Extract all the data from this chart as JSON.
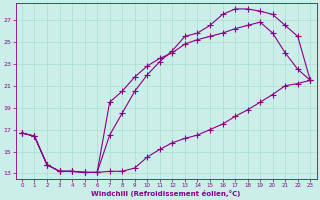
{
  "xlabel": "Windchill (Refroidissement éolien,°C)",
  "bg_color": "#cceee8",
  "grid_color": "#aaddcc",
  "line_color": "#880088",
  "xlim": [
    -0.5,
    23.5
  ],
  "ylim": [
    12.5,
    28.5
  ],
  "yticks": [
    13,
    15,
    17,
    19,
    21,
    23,
    25,
    27
  ],
  "xticks": [
    0,
    1,
    2,
    3,
    4,
    5,
    6,
    7,
    8,
    9,
    10,
    11,
    12,
    13,
    14,
    15,
    16,
    17,
    18,
    19,
    20,
    21,
    22,
    23
  ],
  "line1_x": [
    0,
    1,
    2,
    3,
    4,
    5,
    6,
    7,
    8,
    9,
    10,
    11,
    12,
    13,
    14,
    15,
    16,
    17,
    18,
    19,
    20,
    21,
    22,
    23
  ],
  "line1_y": [
    16.7,
    16.4,
    13.8,
    13.2,
    13.2,
    13.1,
    13.1,
    13.2,
    13.2,
    13.5,
    14.5,
    15.2,
    15.8,
    16.2,
    16.5,
    17.0,
    17.5,
    18.2,
    18.8,
    19.5,
    20.2,
    21.0,
    21.2,
    21.5
  ],
  "line2_x": [
    0,
    1,
    2,
    3,
    4,
    5,
    6,
    7,
    8,
    9,
    10,
    11,
    12,
    13,
    14,
    15,
    16,
    17,
    18,
    19,
    20,
    21,
    22,
    23
  ],
  "line2_y": [
    16.7,
    16.4,
    13.8,
    13.2,
    13.2,
    13.1,
    13.1,
    19.5,
    20.5,
    21.8,
    22.8,
    23.5,
    24.0,
    24.8,
    25.2,
    25.5,
    25.8,
    26.2,
    26.5,
    26.8,
    25.8,
    24.0,
    22.5,
    21.5
  ],
  "line3_x": [
    0,
    1,
    2,
    3,
    4,
    5,
    6,
    7,
    8,
    9,
    10,
    11,
    12,
    13,
    14,
    15,
    16,
    17,
    18,
    19,
    20,
    21,
    22,
    23
  ],
  "line3_y": [
    16.7,
    16.4,
    13.8,
    13.2,
    13.2,
    13.1,
    13.1,
    16.5,
    18.5,
    20.5,
    22.0,
    23.2,
    24.2,
    25.5,
    25.8,
    26.5,
    27.5,
    28.0,
    28.0,
    27.8,
    27.5,
    26.5,
    25.5,
    21.5
  ]
}
